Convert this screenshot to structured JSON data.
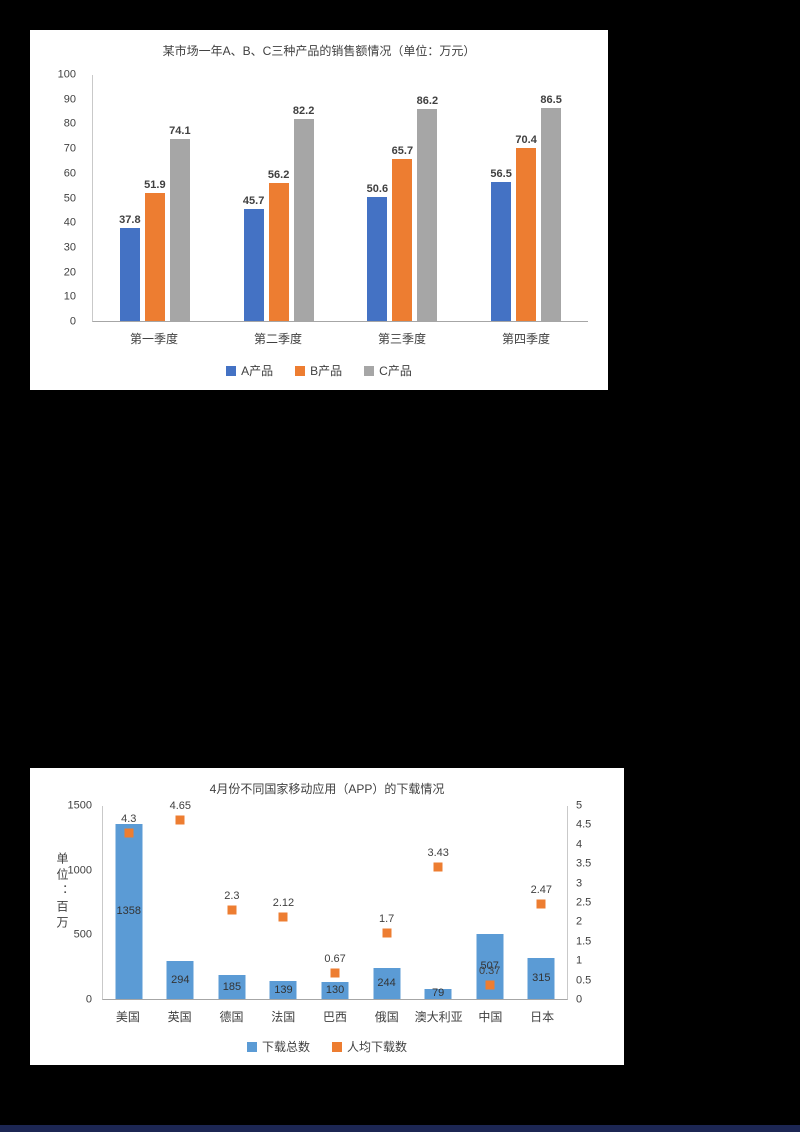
{
  "page": {
    "background_color": "#000000",
    "panel_background": "#ffffff",
    "footer_bar_color": "#1c2653"
  },
  "chart_data": [
    {
      "type": "bar",
      "title": "某市场一年A、B、C三种产品的销售额情况（单位：万元）",
      "categories": [
        "第一季度",
        "第二季度",
        "第三季度",
        "第四季度"
      ],
      "series": [
        {
          "name": "A产品",
          "color": "#4472c4",
          "values": [
            37.8,
            45.7,
            50.6,
            56.5
          ]
        },
        {
          "name": "B产品",
          "color": "#ed7d31",
          "values": [
            51.9,
            56.2,
            65.7,
            70.4
          ]
        },
        {
          "name": "C产品",
          "color": "#a6a6a6",
          "values": [
            74.1,
            82.2,
            86.2,
            86.5
          ]
        }
      ],
      "ylim": [
        0,
        100
      ],
      "yticks": [
        100,
        90,
        80,
        70,
        60,
        50,
        40,
        30,
        20,
        10,
        0
      ],
      "grid": false,
      "legend_position": "bottom"
    },
    {
      "type": "bar",
      "title": "4月份不同国家移动应用（APP）的下载情况",
      "categories": [
        "美国",
        "英国",
        "德国",
        "法国",
        "巴西",
        "俄国",
        "澳大利亚",
        "中国",
        "日本"
      ],
      "left_axis_label": "单位：百万",
      "series": [
        {
          "name": "下载总数",
          "type": "bar",
          "axis": "left",
          "color": "#5b9bd5",
          "values": [
            1358,
            294,
            185,
            139,
            130,
            244,
            79,
            507,
            315
          ]
        },
        {
          "name": "人均下载数",
          "type": "point",
          "axis": "right",
          "color": "#ed7d31",
          "values": [
            4.3,
            4.65,
            2.3,
            2.12,
            0.67,
            1.7,
            3.43,
            0.37,
            2.47
          ]
        }
      ],
      "left_ylim": [
        0,
        1500
      ],
      "left_yticks": [
        1500,
        1000,
        500,
        0
      ],
      "right_ylim": [
        0,
        5
      ],
      "right_yticks": [
        5,
        4.5,
        4,
        3.5,
        3,
        2.5,
        2,
        1.5,
        1,
        0.5,
        0
      ],
      "grid": false,
      "legend_position": "bottom"
    }
  ]
}
